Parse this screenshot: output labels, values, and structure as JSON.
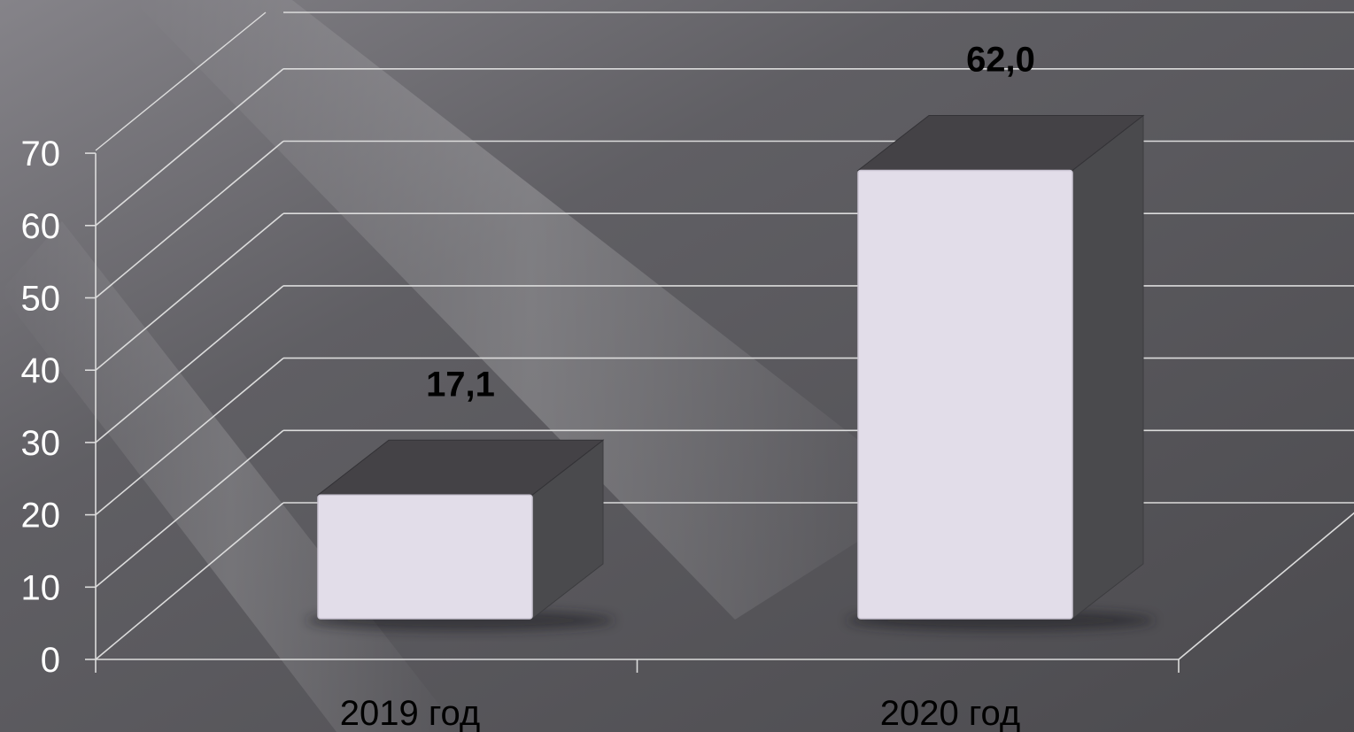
{
  "chart_data": {
    "type": "bar",
    "categories": [
      "2019 год",
      "2020 год"
    ],
    "values": [
      17.1,
      62.0
    ],
    "data_labels": [
      "17,1",
      "62,0"
    ],
    "y_ticks": [
      "0",
      "10",
      "20",
      "30",
      "40",
      "50",
      "60",
      "70"
    ],
    "ylim": [
      0,
      70
    ],
    "grid": true,
    "three_d": true,
    "legend": "none",
    "colors": {
      "background": "#545357",
      "bar_front": "#e2dde9",
      "bar_top": "#444246",
      "bar_side": "#4a4a4d",
      "gridline": "#dcdcdc",
      "tick_text": "#ffffff",
      "label_text": "#000000"
    }
  }
}
